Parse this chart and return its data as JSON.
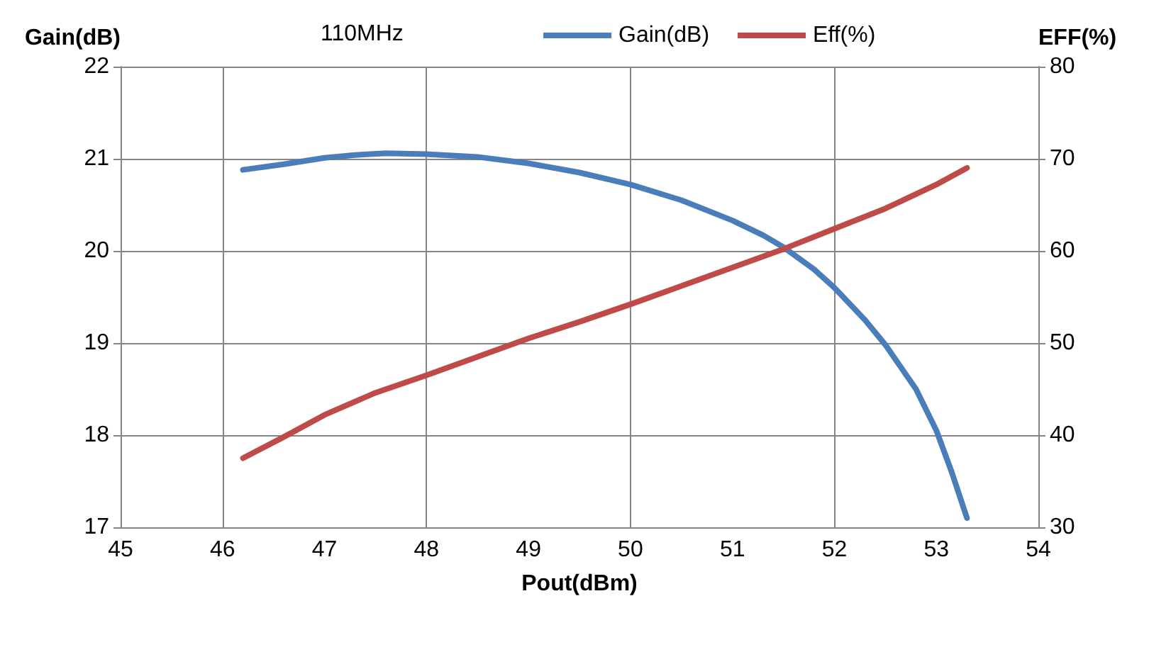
{
  "chart_data": {
    "type": "line",
    "xlabel": "Pout(dBm)",
    "ylabel": "Gain(dB)",
    "y2label": "EFF(%)",
    "annotations": [
      "110MHz"
    ],
    "xlim": [
      45,
      54
    ],
    "xticks": [
      45,
      46,
      47,
      48,
      49,
      50,
      51,
      52,
      53,
      54
    ],
    "ylim": [
      17,
      22
    ],
    "yticks": [
      17,
      18,
      19,
      20,
      21,
      22
    ],
    "y2lim": [
      30,
      80
    ],
    "y2ticks": [
      30,
      40,
      50,
      60,
      70,
      80
    ],
    "grid": true,
    "legend": "top",
    "marker": "none",
    "line_style": "solid",
    "series": [
      {
        "name": "Gain(dB)",
        "color": "#4a7ebb",
        "x": [
          46.2,
          46.6,
          47,
          47.3,
          47.6,
          48,
          48.5,
          49,
          49.5,
          50,
          50.5,
          51,
          51.3,
          51.5,
          51.8,
          52,
          52.3,
          52.5,
          52.8,
          53,
          53.15,
          53.3
        ],
        "values": [
          20.88,
          20.94,
          21.01,
          21.04,
          21.06,
          21.05,
          21.02,
          20.95,
          20.85,
          20.72,
          20.55,
          20.33,
          20.17,
          20.04,
          19.8,
          19.6,
          19.25,
          18.98,
          18.5,
          18.05,
          17.6,
          17.1
        ]
      },
      {
        "name": "Eff(%)",
        "color": "#be4b48",
        "axis": "y2",
        "x": [
          46.2,
          46.6,
          47,
          47.5,
          48,
          48.5,
          49,
          49.5,
          50,
          50.5,
          51,
          51.5,
          52,
          52.5,
          53,
          53.3
        ],
        "values": [
          37.5,
          39.8,
          42.2,
          44.6,
          46.5,
          48.5,
          50.5,
          52.3,
          54.2,
          56.2,
          58.2,
          60.2,
          62.4,
          64.6,
          67.2,
          69
        ]
      }
    ]
  }
}
